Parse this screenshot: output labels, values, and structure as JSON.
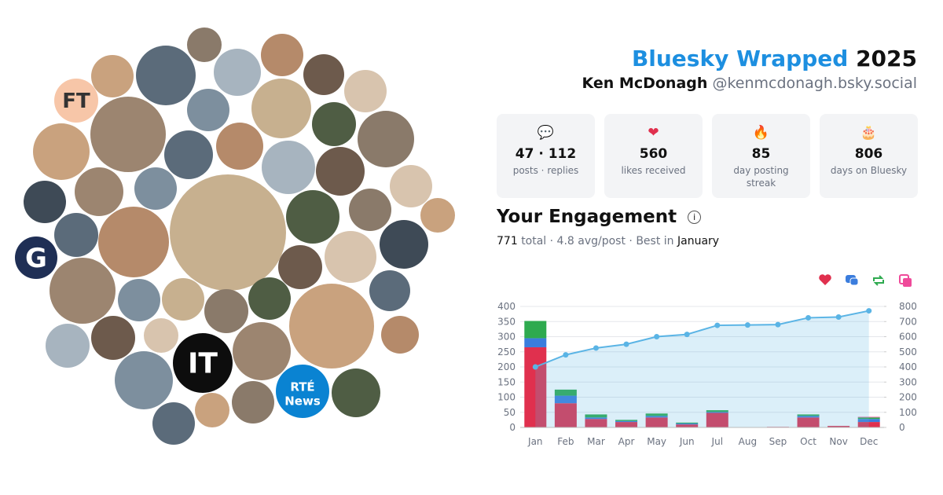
{
  "header": {
    "brand": "Bluesky Wrapped",
    "year": "2025",
    "name": "Ken McDonagh",
    "handle": "@kenmcdonagh.bsky.social"
  },
  "avatars": {
    "logos": [
      "FT",
      "G",
      "IT",
      "RTÉ\nNews"
    ]
  },
  "stats": [
    {
      "value": "47 · 112",
      "label": "posts · replies"
    },
    {
      "value": "560",
      "label": "likes received"
    },
    {
      "value": "85",
      "label": "day posting streak"
    },
    {
      "value": "806",
      "label": "days on Bluesky"
    }
  ],
  "engagement": {
    "title": "Your Engagement",
    "total": "771",
    "summary": "total · 4.8 avg/post · Best in",
    "best": "January"
  },
  "chart_data": {
    "type": "bar",
    "stacked": true,
    "grid": true,
    "categories": [
      "Jan",
      "Feb",
      "Mar",
      "Apr",
      "May",
      "Jun",
      "Jul",
      "Aug",
      "Sep",
      "Oct",
      "Nov",
      "Dec"
    ],
    "ylim": [
      0,
      400
    ],
    "yticks": [
      0,
      50,
      100,
      150,
      200,
      250,
      300,
      350,
      400
    ],
    "y2lim": [
      0,
      800
    ],
    "y2ticks": [
      0,
      100,
      200,
      300,
      400,
      500,
      600,
      700,
      800
    ],
    "series": [
      {
        "color": "#e0304e",
        "values": [
          265,
          80,
          28,
          18,
          33,
          10,
          48,
          0,
          2,
          33,
          5,
          18
        ]
      },
      {
        "color": "#3b7ddd",
        "values": [
          30,
          25,
          5,
          3,
          5,
          3,
          3,
          0,
          0,
          5,
          0,
          10
        ]
      },
      {
        "color": "#2eaa4f",
        "values": [
          57,
          20,
          10,
          4,
          8,
          3,
          6,
          0,
          0,
          5,
          0,
          5
        ]
      },
      {
        "color": "#ef4a9a",
        "values": [
          0,
          0,
          0,
          0,
          0,
          0,
          0,
          0,
          0,
          0,
          0,
          2
        ]
      },
      {
        "type": "line",
        "axis": "y2",
        "color": "#5ab4e5",
        "values": [
          400,
          480,
          525,
          550,
          600,
          615,
          675,
          677,
          680,
          725,
          730,
          771
        ]
      }
    ]
  }
}
